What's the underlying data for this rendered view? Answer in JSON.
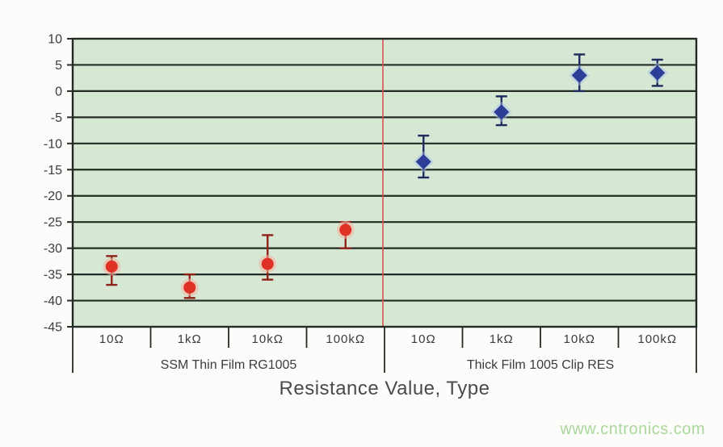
{
  "watermark": "www.cntronics.com",
  "style": {
    "page_bg": "#fcfcfb",
    "plot_bg": "#d6e8d4",
    "grid_color": "#232a23",
    "border_color": "#232a23",
    "divider_color": "#d9534f",
    "tick_text_color": "#3c3c3c",
    "axis_title_color": "#4a4a4a",
    "watermark_color": "#abd79c"
  },
  "chart_data": {
    "type": "scatter",
    "title": "",
    "xlabel": "Resistance Value, Type",
    "ylabel": "",
    "ylim": [
      -45,
      10
    ],
    "yticks": [
      10,
      5,
      0,
      -5,
      -10,
      -15,
      -20,
      -25,
      -30,
      -35,
      -40,
      -45
    ],
    "grid": "horizontal-only",
    "legend": "none",
    "categories": [
      "10Ω",
      "1kΩ",
      "10kΩ",
      "100kΩ",
      "10Ω",
      "1kΩ",
      "10kΩ",
      "100kΩ"
    ],
    "groups": [
      {
        "label": "SSM Thin Film RG1005",
        "category_span": [
          0,
          3
        ]
      },
      {
        "label": "Thick Film 1005 Clip RES",
        "category_span": [
          4,
          7
        ]
      }
    ],
    "group_divider": {
      "between_category_index": 4,
      "color": "#d9534f"
    },
    "series": [
      {
        "name": "SSM Thin Film RG1005",
        "marker": "circle",
        "color": "#e03127",
        "halo_color": "#f5b3a0",
        "whisker_color": "#8e2219",
        "points": [
          {
            "category": "10Ω",
            "category_index": 0,
            "value": -33.5,
            "err_hi": -31.5,
            "err_lo": -37
          },
          {
            "category": "1kΩ",
            "category_index": 1,
            "value": -37.5,
            "err_hi": -35,
            "err_lo": -39.5
          },
          {
            "category": "10kΩ",
            "category_index": 2,
            "value": -33,
            "err_hi": -27.5,
            "err_lo": -36
          },
          {
            "category": "100kΩ",
            "category_index": 3,
            "value": -26.5,
            "err_hi": -25,
            "err_lo": -30
          }
        ]
      },
      {
        "name": "Thick Film 1005 Clip RES",
        "marker": "diamond",
        "color": "#2e3d97",
        "halo_color": "#a9c0e4",
        "whisker_color": "#1f2a5e",
        "points": [
          {
            "category": "10Ω",
            "category_index": 4,
            "value": -13.5,
            "err_hi": -8.5,
            "err_lo": -16.5
          },
          {
            "category": "1kΩ",
            "category_index": 5,
            "value": -4,
            "err_hi": -1,
            "err_lo": -6.5
          },
          {
            "category": "10kΩ",
            "category_index": 6,
            "value": 3,
            "err_hi": 7,
            "err_lo": 0
          },
          {
            "category": "100kΩ",
            "category_index": 7,
            "value": 3.5,
            "err_hi": 6,
            "err_lo": 1
          }
        ]
      }
    ]
  }
}
